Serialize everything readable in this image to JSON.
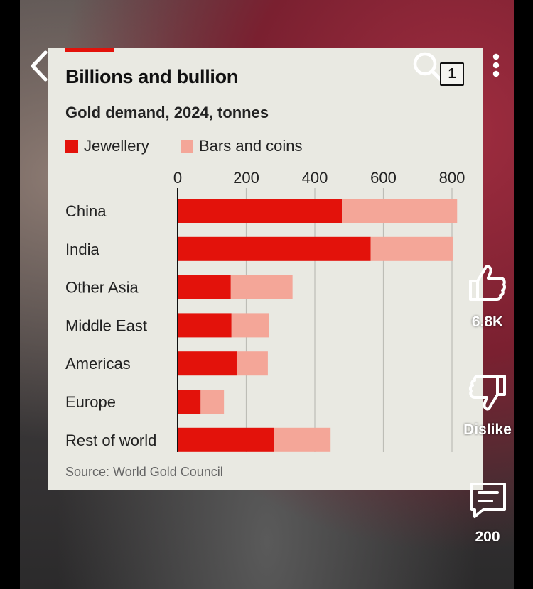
{
  "chart_data": {
    "type": "bar",
    "stacked": true,
    "orientation": "horizontal",
    "title": "Billions and bullion",
    "subtitle": "Gold demand, 2024, tonnes",
    "categories": [
      "China",
      "India",
      "Other Asia",
      "Middle East",
      "Americas",
      "Europe",
      "Rest of world"
    ],
    "series": [
      {
        "name": "Jewellery",
        "color": "#e3120b",
        "values": [
          479,
          563,
          155,
          157,
          172,
          67,
          281
        ]
      },
      {
        "name": "Bars and coins",
        "color": "#f4a698",
        "values": [
          336,
          239,
          180,
          110,
          91,
          68,
          165
        ]
      }
    ],
    "xticks": [
      "0",
      "200",
      "400",
      "600",
      "800"
    ],
    "xlim": [
      0,
      800
    ],
    "grid": true,
    "legend": "top-left",
    "source": "Source: World Gold Council"
  },
  "overlay": {
    "page_indicator": "1",
    "like_count": "6.8K",
    "dislike_label": "Dislike",
    "comment_count": "200"
  }
}
